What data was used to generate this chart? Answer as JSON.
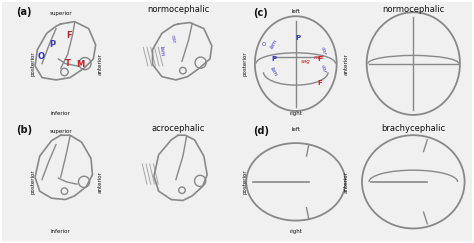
{
  "bg_color": "#f0f0f0",
  "panel_bg": "#ffffff",
  "border_color": "#555555",
  "skull_color": "#888888",
  "text_blue": "#3333cc",
  "text_red": "#cc2222",
  "text_black": "#111111",
  "arrow_color": "#111111",
  "title_a": "normocephalic",
  "title_b": "acrocephalic",
  "title_c": "normocephalic",
  "title_d": "brachycephalic",
  "label_a": "(a)",
  "label_b": "(b)",
  "label_c": "(c)",
  "label_d": "(d)"
}
